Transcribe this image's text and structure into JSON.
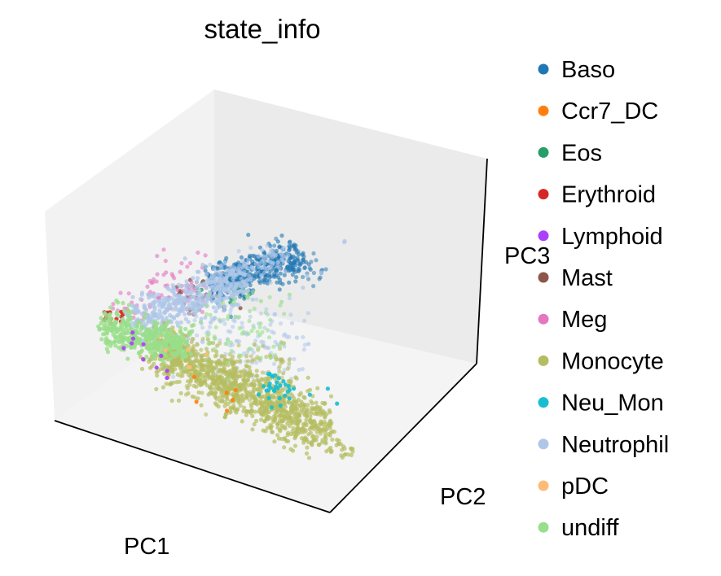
{
  "chart_data": {
    "type": "scatter",
    "projection": "3d",
    "title": "state_info",
    "axes": {
      "x": "PC1",
      "y": "PC2",
      "z": "PC3"
    },
    "grid": false,
    "legend_placement": "right",
    "legend": [
      {
        "name": "Baso",
        "color": "#1f77b4"
      },
      {
        "name": "Ccr7_DC",
        "color": "#ff7f0e"
      },
      {
        "name": "Eos",
        "color": "#279e68"
      },
      {
        "name": "Erythroid",
        "color": "#d62728"
      },
      {
        "name": "Lymphoid",
        "color": "#aa40fc"
      },
      {
        "name": "Mast",
        "color": "#8c564b"
      },
      {
        "name": "Meg",
        "color": "#e377c2"
      },
      {
        "name": "Monocyte",
        "color": "#b5bd61"
      },
      {
        "name": "Neu_Mon",
        "color": "#17becf"
      },
      {
        "name": "Neutrophil",
        "color": "#aec7e8"
      },
      {
        "name": "pDC",
        "color": "#ffbb78"
      },
      {
        "name": "undiff",
        "color": "#98df8a"
      }
    ]
  }
}
